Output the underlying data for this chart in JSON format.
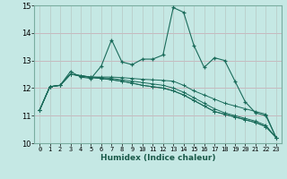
{
  "xlabel": "Humidex (Indice chaleur)",
  "xlim": [
    -0.5,
    23.5
  ],
  "ylim": [
    10,
    15
  ],
  "yticks": [
    10,
    11,
    12,
    13,
    14,
    15
  ],
  "xticks": [
    0,
    1,
    2,
    3,
    4,
    5,
    6,
    7,
    8,
    9,
    10,
    11,
    12,
    13,
    14,
    15,
    16,
    17,
    18,
    19,
    20,
    21,
    22,
    23
  ],
  "bg_color": "#c5e8e4",
  "line_color": "#1a6b5a",
  "grid_color_h": "#c8b0b8",
  "grid_color_v": "#b8c8c4",
  "series": [
    [
      11.2,
      12.05,
      12.1,
      12.6,
      12.4,
      12.35,
      12.8,
      13.75,
      12.95,
      12.85,
      13.05,
      13.05,
      13.2,
      14.92,
      14.75,
      13.55,
      12.75,
      13.1,
      13.0,
      12.25,
      11.5,
      11.1,
      11.0,
      10.2
    ],
    [
      11.2,
      12.05,
      12.1,
      12.5,
      12.45,
      12.4,
      12.4,
      12.4,
      12.38,
      12.35,
      12.32,
      12.3,
      12.28,
      12.25,
      12.1,
      11.9,
      11.75,
      11.6,
      11.45,
      11.35,
      11.25,
      11.15,
      11.05,
      10.2
    ],
    [
      11.2,
      12.05,
      12.1,
      12.5,
      12.45,
      12.4,
      12.38,
      12.35,
      12.3,
      12.25,
      12.2,
      12.15,
      12.1,
      12.0,
      11.85,
      11.65,
      11.45,
      11.25,
      11.1,
      11.0,
      10.9,
      10.8,
      10.65,
      10.2
    ],
    [
      11.2,
      12.05,
      12.1,
      12.5,
      12.45,
      12.38,
      12.35,
      12.3,
      12.25,
      12.18,
      12.1,
      12.05,
      12.0,
      11.9,
      11.75,
      11.55,
      11.35,
      11.15,
      11.05,
      10.95,
      10.85,
      10.75,
      10.6,
      10.2
    ],
    [
      11.2,
      12.05,
      12.1,
      12.5,
      12.45,
      12.38,
      12.35,
      12.3,
      12.25,
      12.18,
      12.1,
      12.05,
      12.0,
      11.9,
      11.75,
      11.55,
      11.35,
      11.15,
      11.05,
      10.95,
      10.85,
      10.75,
      10.6,
      10.2
    ]
  ]
}
